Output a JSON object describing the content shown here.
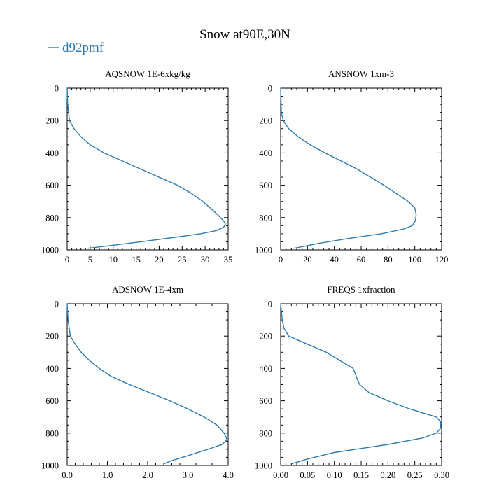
{
  "figure": {
    "title": "Snow at90E,30N",
    "legend": [
      {
        "label": "d92pmf",
        "color": "#2c7bb6"
      }
    ],
    "line_color": "#2c7bb6"
  },
  "chart_data": [
    {
      "type": "line",
      "title": "AQSNOW  1E-6xkg/kg",
      "xlabel": "",
      "ylabel": "",
      "xlim": [
        0,
        35
      ],
      "xticks": [
        0,
        5,
        10,
        15,
        20,
        25,
        30,
        35
      ],
      "xtick_labels": [
        "0",
        "5",
        "10",
        "15",
        "20",
        "25",
        "30",
        "35"
      ],
      "ylim": [
        1000,
        0
      ],
      "yticks": [
        0,
        200,
        400,
        600,
        800,
        1000
      ],
      "ytick_labels": [
        "0",
        "200",
        "400",
        "600",
        "800",
        "1000"
      ],
      "grid": false,
      "series": [
        {
          "name": "d92pmf",
          "x": [
            0,
            0.1,
            0.5,
            1.5,
            3,
            5,
            8,
            12,
            16,
            20,
            24,
            27,
            29.5,
            31.5,
            33,
            34,
            34.4,
            34,
            32.5,
            29,
            24,
            16,
            9,
            4.5
          ],
          "y": [
            0,
            100,
            200,
            250,
            300,
            350,
            400,
            450,
            500,
            550,
            600,
            650,
            700,
            750,
            790,
            820,
            840,
            860,
            880,
            900,
            920,
            950,
            975,
            990
          ]
        }
      ]
    },
    {
      "type": "line",
      "title": "ANSNOW  1xm-3",
      "xlabel": "",
      "ylabel": "",
      "xlim": [
        0,
        120
      ],
      "xticks": [
        0,
        20,
        40,
        60,
        80,
        100,
        120
      ],
      "xtick_labels": [
        "0",
        "20",
        "40",
        "60",
        "80",
        "100",
        "120"
      ],
      "ylim": [
        1000,
        0
      ],
      "yticks": [
        0,
        200,
        400,
        600,
        800,
        1000
      ],
      "ytick_labels": [
        "0",
        "200",
        "400",
        "600",
        "800",
        "1000"
      ],
      "grid": false,
      "series": [
        {
          "name": "d92pmf",
          "x": [
            0,
            0.5,
            2,
            6,
            13,
            22,
            33,
            45,
            57,
            67,
            77,
            86,
            95,
            100,
            101,
            100.5,
            98,
            92,
            75,
            50,
            28,
            10
          ],
          "y": [
            0,
            150,
            200,
            250,
            300,
            350,
            400,
            450,
            500,
            550,
            600,
            650,
            700,
            740,
            780,
            820,
            850,
            870,
            900,
            930,
            960,
            990
          ]
        }
      ]
    },
    {
      "type": "line",
      "title": "ADSNOW  1E-4xm",
      "xlabel": "",
      "ylabel": "",
      "xlim": [
        0,
        4
      ],
      "xticks": [
        0,
        1,
        2,
        3,
        4
      ],
      "xtick_labels": [
        "0.0",
        "1.0",
        "2.0",
        "3.0",
        "4.0"
      ],
      "ylim": [
        1000,
        0
      ],
      "yticks": [
        0,
        200,
        400,
        600,
        800,
        1000
      ],
      "ytick_labels": [
        "0",
        "200",
        "400",
        "600",
        "800",
        "1000"
      ],
      "grid": false,
      "series": [
        {
          "name": "d92pmf",
          "x": [
            0,
            0.02,
            0.08,
            0.2,
            0.35,
            0.55,
            0.8,
            1.1,
            1.55,
            2.05,
            2.55,
            3.0,
            3.4,
            3.72,
            3.9,
            3.97,
            3.85,
            3.5,
            3.0,
            2.6,
            2.4
          ],
          "y": [
            0,
            100,
            200,
            250,
            300,
            350,
            400,
            450,
            500,
            550,
            600,
            650,
            700,
            750,
            800,
            840,
            870,
            900,
            940,
            970,
            990
          ]
        }
      ]
    },
    {
      "type": "line",
      "title": "FREQS  1xfraction",
      "xlabel": "",
      "ylabel": "",
      "xlim": [
        0,
        0.3
      ],
      "xticks": [
        0,
        0.05,
        0.1,
        0.15,
        0.2,
        0.25,
        0.3
      ],
      "xtick_labels": [
        "0.00",
        "0.05",
        "0.10",
        "0.15",
        "0.20",
        "0.25",
        "0.30"
      ],
      "ylim": [
        1000,
        0
      ],
      "yticks": [
        0,
        200,
        400,
        600,
        800,
        1000
      ],
      "ytick_labels": [
        "0",
        "200",
        "400",
        "600",
        "800",
        "1000"
      ],
      "grid": false,
      "series": [
        {
          "name": "d92pmf",
          "x": [
            0,
            0.003,
            0.006,
            0.015,
            0.05,
            0.085,
            0.11,
            0.135,
            0.14,
            0.142,
            0.147,
            0.165,
            0.2,
            0.24,
            0.27,
            0.29,
            0.298,
            0.298,
            0.29,
            0.265,
            0.2,
            0.1,
            0.05,
            0.02
          ],
          "y": [
            0,
            100,
            150,
            200,
            250,
            300,
            350,
            400,
            440,
            460,
            500,
            550,
            600,
            650,
            680,
            700,
            730,
            770,
            800,
            830,
            870,
            920,
            960,
            990
          ]
        }
      ]
    }
  ]
}
